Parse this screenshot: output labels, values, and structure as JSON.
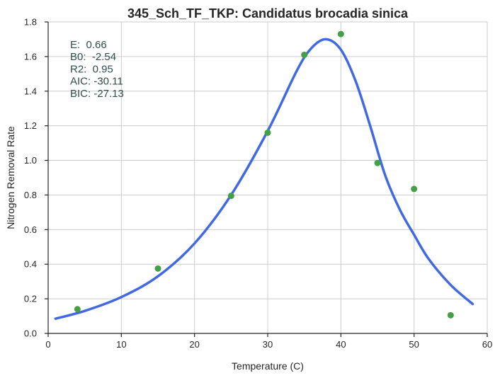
{
  "chart_data": {
    "type": "scatter",
    "title": "345_Sch_TF_TKP: Candidatus brocadia sinica",
    "xlabel": "Temperature (C)",
    "ylabel": "Nitrogen Removal Rate",
    "xlim": [
      0,
      60
    ],
    "ylim": [
      0,
      1.8
    ],
    "xticks": [
      0,
      10,
      20,
      30,
      40,
      50,
      60
    ],
    "yticks": [
      0.0,
      0.2,
      0.4,
      0.6,
      0.8,
      1.0,
      1.2,
      1.4,
      1.6,
      1.8
    ],
    "xtick_labels": [
      "0",
      "10",
      "20",
      "30",
      "40",
      "50",
      "60"
    ],
    "ytick_labels": [
      "0.0",
      "0.2",
      "0.4",
      "0.6",
      "0.8",
      "1.0",
      "1.2",
      "1.4",
      "1.6",
      "1.8"
    ],
    "grid": true,
    "points": {
      "x": [
        4,
        15,
        25,
        30,
        35,
        40,
        45,
        50,
        55
      ],
      "y": [
        0.14,
        0.375,
        0.795,
        1.16,
        1.61,
        1.73,
        0.985,
        0.835,
        0.105
      ],
      "color": "#43a047"
    },
    "fit_curve": {
      "x": [
        1,
        5,
        10,
        15,
        20,
        25,
        30,
        34,
        36,
        38,
        40,
        42,
        44,
        46,
        48,
        50,
        52,
        55,
        58
      ],
      "y": [
        0.085,
        0.13,
        0.21,
        0.33,
        0.52,
        0.8,
        1.17,
        1.52,
        1.65,
        1.7,
        1.64,
        1.46,
        1.2,
        0.92,
        0.72,
        0.57,
        0.43,
        0.28,
        0.17
      ],
      "color": "#4169e1"
    },
    "stats": [
      {
        "label": "E:  0.66"
      },
      {
        "label": "B0:  -2.54"
      },
      {
        "label": "R2:  0.95"
      },
      {
        "label": "AIC: -30.11"
      },
      {
        "label": "BIC: -27.13"
      }
    ],
    "stats_color": "#2f4f4f"
  }
}
